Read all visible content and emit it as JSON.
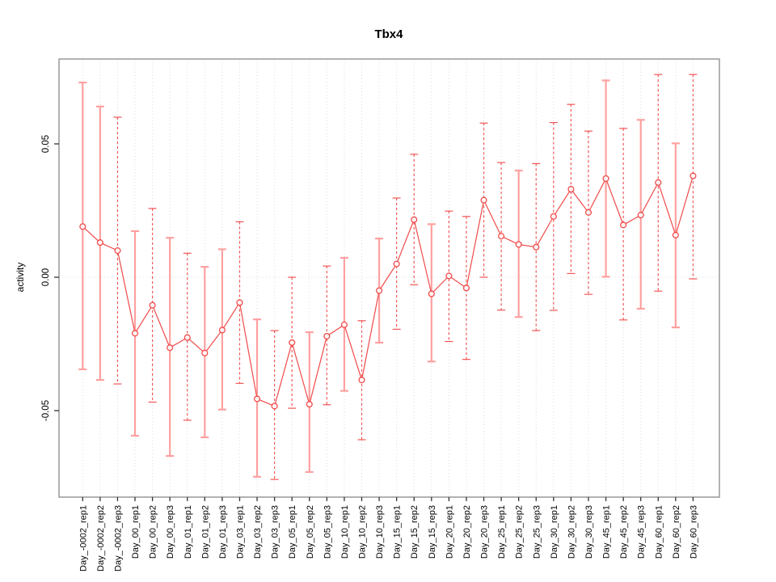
{
  "title": "Tbx4",
  "ylabel": "activity",
  "colors": {
    "series_red": "#f04a4a",
    "errorbar_solid": "#ffa0a0",
    "errorbar_dashed": "#f25555",
    "grid": "#dddddd",
    "box_border": "#999999",
    "tick": "#333333",
    "background": "#ffffff"
  },
  "chart_data": {
    "type": "line",
    "subtype": "points-with-error-bars",
    "title": "Tbx4",
    "xlabel": "",
    "ylabel": "activity",
    "ylim": [
      -0.082,
      0.082
    ],
    "grid": "vertical dotted gridline at every category; horizontal dotted line at y=0; gray box around plot",
    "legend_position": "none",
    "yticks": [
      {
        "value": 0.05,
        "label": "0.05"
      },
      {
        "value": 0.0,
        "label": "0.00"
      },
      {
        "value": -0.05,
        "label": "-0.05"
      }
    ],
    "categories": [
      "Day_-0002_rep1",
      "Day_-0002_rep2",
      "Day_-0002_rep3",
      "Day_00_rep1",
      "Day_00_rep2",
      "Day_00_rep3",
      "Day_01_rep1",
      "Day_01_rep2",
      "Day_01_rep3",
      "Day_03_rep1",
      "Day_03_rep2",
      "Day_03_rep3",
      "Day_05_rep1",
      "Day_05_rep2",
      "Day_05_rep3",
      "Day_10_rep1",
      "Day_10_rep2",
      "Day_10_rep3",
      "Day_15_rep1",
      "Day_15_rep2",
      "Day_15_rep3",
      "Day_20_rep1",
      "Day_20_rep2",
      "Day_20_rep3",
      "Day_25_rep1",
      "Day_25_rep2",
      "Day_25_rep3",
      "Day_30_rep1",
      "Day_30_rep2",
      "Day_30_rep3",
      "Day_45_rep1",
      "Day_45_rep2",
      "Day_45_rep3",
      "Day_60_rep1",
      "Day_60_rep2",
      "Day_60_rep3"
    ],
    "values": [
      0.019,
      0.013,
      0.01,
      -0.021,
      -0.0105,
      -0.0264,
      -0.0226,
      -0.0284,
      -0.0198,
      -0.0095,
      -0.0456,
      -0.0483,
      -0.0245,
      -0.0476,
      -0.0221,
      -0.0178,
      -0.0385,
      -0.005,
      0.005,
      0.0216,
      -0.0062,
      0.0005,
      -0.004,
      0.0289,
      0.0154,
      0.0123,
      0.0113,
      0.0228,
      0.033,
      0.0243,
      0.037,
      0.0196,
      0.0233,
      0.0355,
      0.0158,
      0.038
    ],
    "error_upper": [
      0.073,
      0.064,
      0.06,
      0.0173,
      0.0258,
      0.0148,
      0.009,
      0.0039,
      0.0105,
      0.0208,
      -0.0158,
      -0.02,
      0.0,
      -0.0206,
      0.0042,
      0.0073,
      -0.0163,
      0.0145,
      0.0297,
      0.0461,
      0.0199,
      0.0248,
      0.0228,
      0.0578,
      0.043,
      0.04,
      0.0426,
      0.058,
      0.0648,
      0.0548,
      0.0738,
      0.0558,
      0.059,
      0.076,
      0.0502,
      0.076
    ],
    "error_lower": [
      -0.0345,
      -0.0385,
      -0.04,
      -0.0594,
      -0.0468,
      -0.067,
      -0.0536,
      -0.06,
      -0.0496,
      -0.0398,
      -0.0748,
      -0.0758,
      -0.0491,
      -0.073,
      -0.0478,
      -0.0426,
      -0.0609,
      -0.0245,
      -0.0195,
      -0.0028,
      -0.0316,
      -0.0241,
      -0.0308,
      0.0,
      -0.0123,
      -0.0149,
      -0.02,
      -0.0124,
      0.0014,
      -0.0064,
      0.0002,
      -0.016,
      -0.0118,
      -0.0052,
      -0.0188,
      -0.0006
    ],
    "errorbar_styles": [
      "solid",
      "solid",
      "dashed",
      "solid",
      "dashed",
      "solid",
      "dashed",
      "solid",
      "solid",
      "dashed",
      "solid",
      "dashed",
      "dashed",
      "solid",
      "dashed",
      "solid",
      "dashed",
      "solid",
      "dashed",
      "dashed",
      "solid",
      "dashed",
      "dashed",
      "dashed",
      "dashed",
      "solid",
      "dashed",
      "dashed",
      "dashed",
      "dashed",
      "solid",
      "dashed",
      "solid",
      "dashed",
      "solid",
      "dashed"
    ]
  }
}
